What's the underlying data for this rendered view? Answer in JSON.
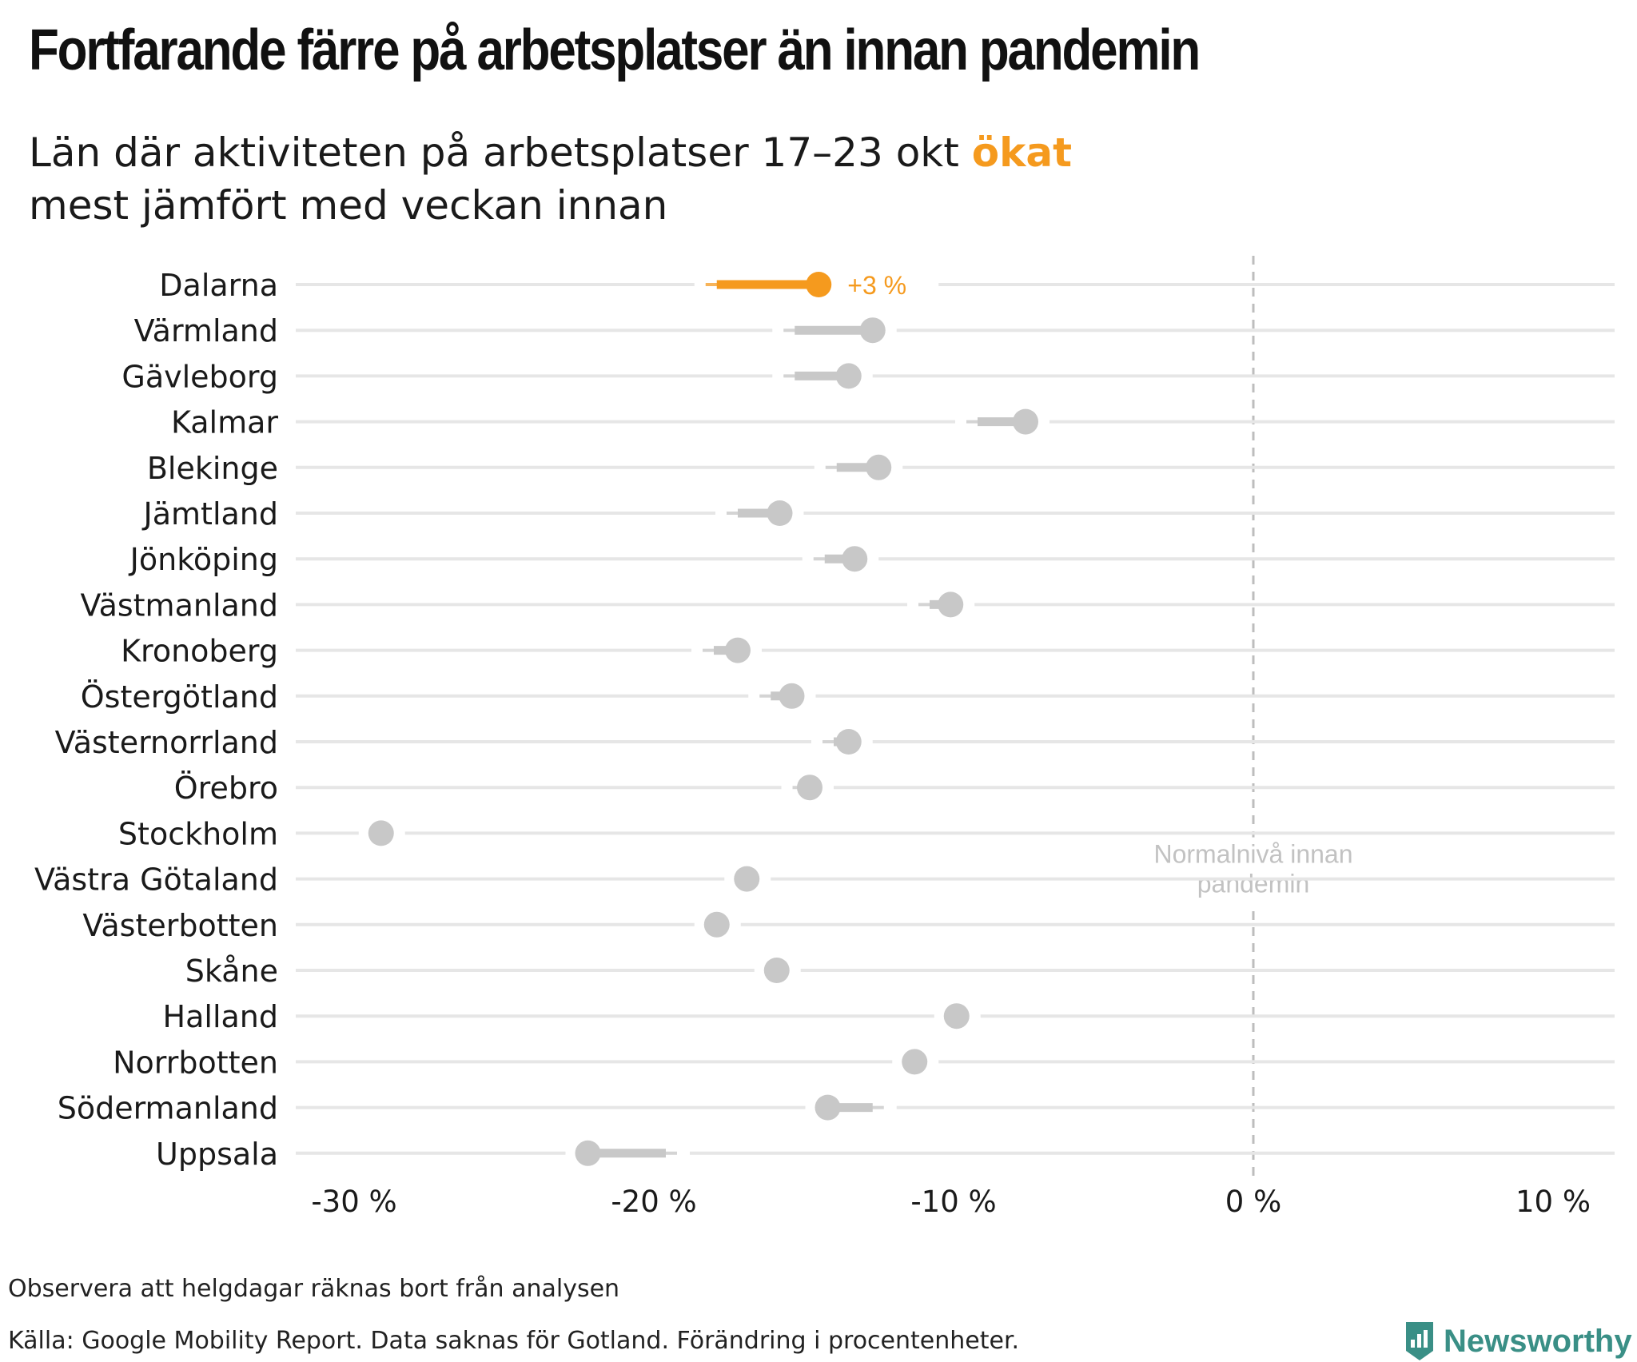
{
  "title": "Fortfarande färre på arbetsplatser än innan pandemin",
  "subtitle": {
    "line1_before": "Län där aktiviteten på arbetsplatser 17–23 okt ",
    "line1_highlight": "ökat",
    "line2": "mest jämfört med veckan innan"
  },
  "footnote": "Observera att helgdagar räknas bort från analysen",
  "source": "Källa: Google Mobility Report. Data saknas för Gotland. Förändring i procentenheter.",
  "brand": "Newsworthy",
  "colors": {
    "highlight": "#f59a1e",
    "muted": "#c8c8c8",
    "gridline": "#e6e6e6",
    "reference_line": "#bdbdbd",
    "brand": "#3a8f86"
  },
  "chart_data": {
    "type": "dumbbell",
    "x_tick_labels": [
      "-30 %",
      "-20 %",
      "-10 %",
      "0 %",
      "10 %"
    ],
    "x_ticks": [
      -30,
      -20,
      -10,
      0,
      10
    ],
    "xlim": [
      -32,
      12
    ],
    "reference_line": {
      "x": 0,
      "label_line1": "Normalnivå innan",
      "label_line2": "pandemin"
    },
    "highlight_label": "+3 %",
    "series": [
      {
        "name": "Dalarna",
        "previous": -17.9,
        "current": -14.5,
        "highlight": true
      },
      {
        "name": "Värmland",
        "previous": -15.3,
        "current": -12.7
      },
      {
        "name": "Gävleborg",
        "previous": -15.3,
        "current": -13.5
      },
      {
        "name": "Kalmar",
        "previous": -9.2,
        "current": -7.6
      },
      {
        "name": "Blekinge",
        "previous": -13.9,
        "current": -12.5
      },
      {
        "name": "Jämtland",
        "previous": -17.2,
        "current": -15.8
      },
      {
        "name": "Jönköping",
        "previous": -14.3,
        "current": -13.3
      },
      {
        "name": "Västmanland",
        "previous": -10.8,
        "current": -10.1
      },
      {
        "name": "Kronoberg",
        "previous": -18.0,
        "current": -17.2
      },
      {
        "name": "Östergötland",
        "previous": -16.1,
        "current": -15.4
      },
      {
        "name": "Västernorrland",
        "previous": -14.0,
        "current": -13.5
      },
      {
        "name": "Örebro",
        "previous": -15.0,
        "current": -14.8
      },
      {
        "name": "Stockholm",
        "previous": -29.1,
        "current": -29.1
      },
      {
        "name": "Västra Götaland",
        "previous": -16.9,
        "current": -16.9
      },
      {
        "name": "Västerbotten",
        "previous": -17.9,
        "current": -17.9
      },
      {
        "name": "Skåne",
        "previous": -15.9,
        "current": -15.9
      },
      {
        "name": "Halland",
        "previous": -9.9,
        "current": -9.9
      },
      {
        "name": "Norrbotten",
        "previous": -11.3,
        "current": -11.3
      },
      {
        "name": "Södermanland",
        "previous": -12.7,
        "current": -14.2
      },
      {
        "name": "Uppsala",
        "previous": -19.6,
        "current": -22.2
      }
    ]
  }
}
